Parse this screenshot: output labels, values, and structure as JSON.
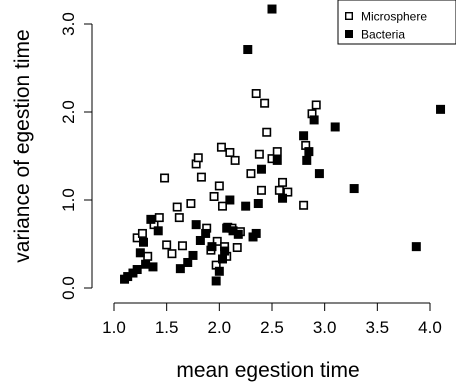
{
  "chart_data": {
    "type": "scatter",
    "title": "",
    "xlabel": "mean egestion time",
    "ylabel": "variance of egestion time",
    "xlim": [
      1.0,
      4.1
    ],
    "ylim": [
      0.0,
      3.1
    ],
    "x_ticks": [
      1.0,
      1.5,
      2.0,
      2.5,
      3.0,
      3.5,
      4.0
    ],
    "x_tick_labels": [
      "1.0",
      "1.5",
      "2.0",
      "2.5",
      "3.0",
      "3.5",
      "4.0"
    ],
    "y_ticks": [
      0.0,
      1.0,
      2.0,
      3.0
    ],
    "y_tick_labels": [
      "0.0",
      "1.0",
      "2.0",
      "3.0"
    ],
    "legend_position": "top-right",
    "series": [
      {
        "name": "Microsphere",
        "marker": "open-square",
        "color": "#000000",
        "points": [
          [
            1.22,
            0.57
          ],
          [
            1.27,
            0.62
          ],
          [
            1.32,
            0.36
          ],
          [
            1.38,
            0.72
          ],
          [
            1.43,
            0.8
          ],
          [
            1.48,
            1.25
          ],
          [
            1.5,
            0.49
          ],
          [
            1.55,
            0.39
          ],
          [
            1.6,
            0.92
          ],
          [
            1.62,
            0.8
          ],
          [
            1.65,
            0.48
          ],
          [
            1.73,
            0.96
          ],
          [
            1.78,
            1.41
          ],
          [
            1.8,
            1.48
          ],
          [
            1.83,
            1.26
          ],
          [
            1.88,
            0.68
          ],
          [
            1.92,
            0.43
          ],
          [
            1.95,
            1.04
          ],
          [
            1.97,
            0.26
          ],
          [
            1.98,
            0.53
          ],
          [
            2.0,
            1.16
          ],
          [
            2.02,
            1.6
          ],
          [
            2.03,
            0.93
          ],
          [
            2.05,
            0.47
          ],
          [
            2.07,
            0.36
          ],
          [
            2.08,
            0.69
          ],
          [
            2.1,
            1.54
          ],
          [
            2.12,
            0.68
          ],
          [
            2.15,
            1.45
          ],
          [
            2.17,
            0.46
          ],
          [
            2.2,
            0.64
          ],
          [
            2.3,
            1.3
          ],
          [
            2.35,
            2.21
          ],
          [
            2.38,
            1.52
          ],
          [
            2.4,
            1.11
          ],
          [
            2.43,
            2.1
          ],
          [
            2.45,
            1.77
          ],
          [
            2.5,
            1.47
          ],
          [
            2.55,
            1.55
          ],
          [
            2.57,
            1.11
          ],
          [
            2.6,
            1.2
          ],
          [
            2.65,
            1.09
          ],
          [
            2.8,
            0.94
          ],
          [
            2.82,
            1.62
          ],
          [
            2.88,
            1.98
          ],
          [
            2.92,
            2.08
          ]
        ]
      },
      {
        "name": "Bacteria",
        "marker": "filled-square",
        "color": "#000000",
        "points": [
          [
            1.1,
            0.1
          ],
          [
            1.13,
            0.13
          ],
          [
            1.18,
            0.17
          ],
          [
            1.22,
            0.21
          ],
          [
            1.25,
            0.4
          ],
          [
            1.28,
            0.52
          ],
          [
            1.3,
            0.27
          ],
          [
            1.35,
            0.78
          ],
          [
            1.37,
            0.24
          ],
          [
            1.42,
            0.65
          ],
          [
            1.63,
            0.22
          ],
          [
            1.7,
            0.29
          ],
          [
            1.75,
            0.37
          ],
          [
            1.78,
            0.72
          ],
          [
            1.82,
            0.54
          ],
          [
            1.87,
            0.62
          ],
          [
            1.93,
            0.47
          ],
          [
            1.97,
            0.08
          ],
          [
            2.0,
            0.19
          ],
          [
            2.03,
            0.33
          ],
          [
            2.05,
            0.42
          ],
          [
            2.07,
            0.68
          ],
          [
            2.1,
            1.0
          ],
          [
            2.13,
            0.65
          ],
          [
            2.18,
            0.61
          ],
          [
            2.25,
            0.93
          ],
          [
            2.27,
            2.71
          ],
          [
            2.32,
            0.58
          ],
          [
            2.35,
            0.62
          ],
          [
            2.37,
            0.96
          ],
          [
            2.4,
            1.35
          ],
          [
            2.5,
            3.17
          ],
          [
            2.55,
            1.45
          ],
          [
            2.6,
            1.02
          ],
          [
            2.8,
            1.73
          ],
          [
            2.83,
            1.45
          ],
          [
            2.85,
            1.55
          ],
          [
            2.9,
            1.91
          ],
          [
            2.95,
            1.3
          ],
          [
            3.1,
            1.83
          ],
          [
            3.28,
            1.13
          ],
          [
            3.87,
            0.47
          ],
          [
            4.1,
            2.03
          ]
        ]
      }
    ]
  }
}
